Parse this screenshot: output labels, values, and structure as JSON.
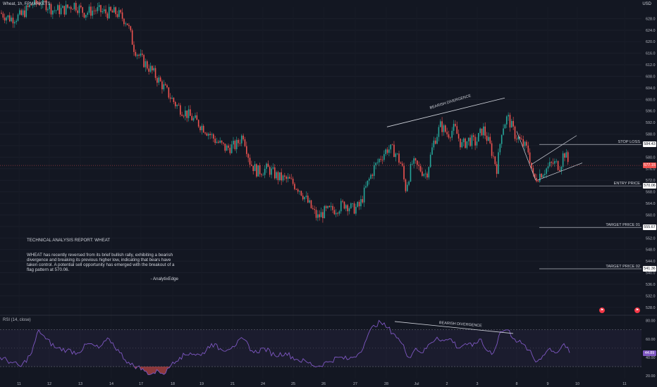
{
  "header": {
    "title": "Wheat, 1h, FPMARKETS",
    "currency": "USD"
  },
  "rsi_header": "RSI (14, close)",
  "report": {
    "title": "TECHNICAL ANALYSIS REPORT: WHEAT",
    "body": "WHEAT has recently reversed from its brief bullish rally, exhibiting a bearish divergence and breaking its previous higher low, indicating that bears have taken control. A potential sell opportunity has emerged with the breakout of a flag pattern at 570.06.",
    "signature": "- AnalytixEdge"
  },
  "levels": [
    {
      "label": "STOP LOSS",
      "value": "584.43",
      "price": 584.43
    },
    {
      "label": "ENTRY PRICE",
      "value": "570.06",
      "price": 570.06
    },
    {
      "label": "TARGET PRICE 01",
      "value": "555.67",
      "price": 555.67
    },
    {
      "label": "TARGET PRICE 02",
      "value": "541.36",
      "price": 541.36
    }
  ],
  "current_price": {
    "value": "577.15",
    "price": 577.15
  },
  "annotations": {
    "price_divergence": "BEARISH DIVERGENCE",
    "rsi_divergence": "BEARISH DIVERGENCE"
  },
  "colors": {
    "background": "#131722",
    "up": "#26a69a",
    "down": "#ef5350",
    "rsi": "#7e57c2",
    "level": "#b2b5be"
  },
  "chart_data": [
    {
      "type": "candlestick",
      "title": "Wheat, 1h, FPMARKETS",
      "ylim": [
        526,
        632
      ],
      "y_ticks": [
        528,
        532,
        536,
        540,
        544,
        548,
        552,
        556,
        560,
        564,
        568,
        572,
        576,
        580,
        584,
        588,
        592,
        596,
        600,
        604,
        608,
        612,
        616,
        620,
        624,
        628
      ],
      "x_ticks": [
        "11",
        "12",
        "13",
        "14",
        "17",
        "18",
        "19",
        "21",
        "24",
        "25",
        "26",
        "27",
        "28",
        "Jul",
        "2",
        "3",
        "8",
        "9",
        "10",
        "11"
      ],
      "path_close": [
        [
          0,
          630
        ],
        [
          15,
          628
        ],
        [
          30,
          629
        ],
        [
          45,
          633
        ],
        [
          60,
          634
        ],
        [
          75,
          631
        ],
        [
          90,
          631
        ],
        [
          105,
          633
        ],
        [
          120,
          630
        ],
        [
          135,
          631
        ],
        [
          150,
          630
        ],
        [
          165,
          630
        ],
        [
          180,
          627
        ],
        [
          190,
          618
        ],
        [
          200,
          614
        ],
        [
          215,
          610
        ],
        [
          230,
          605
        ],
        [
          250,
          598
        ],
        [
          270,
          594
        ],
        [
          290,
          590
        ],
        [
          305,
          586
        ],
        [
          320,
          583
        ],
        [
          335,
          584
        ],
        [
          345,
          588
        ],
        [
          355,
          578
        ],
        [
          365,
          575
        ],
        [
          380,
          576
        ],
        [
          395,
          573
        ],
        [
          410,
          572
        ],
        [
          425,
          569
        ],
        [
          440,
          563
        ],
        [
          450,
          559
        ],
        [
          460,
          561
        ],
        [
          475,
          562
        ],
        [
          490,
          564
        ],
        [
          500,
          562
        ],
        [
          510,
          563
        ],
        [
          520,
          570
        ],
        [
          530,
          576
        ],
        [
          540,
          580
        ],
        [
          550,
          583
        ],
        [
          560,
          582
        ],
        [
          570,
          577
        ],
        [
          575,
          569
        ],
        [
          585,
          578
        ],
        [
          595,
          576
        ],
        [
          605,
          574
        ],
        [
          615,
          585
        ],
        [
          625,
          591
        ],
        [
          635,
          588
        ],
        [
          645,
          590
        ],
        [
          655,
          584
        ],
        [
          665,
          586
        ],
        [
          675,
          585
        ],
        [
          685,
          590
        ],
        [
          695,
          584
        ],
        [
          705,
          576
        ],
        [
          712,
          590
        ],
        [
          720,
          594
        ],
        [
          730,
          588
        ],
        [
          740,
          585
        ],
        [
          750,
          582
        ],
        [
          757,
          572
        ],
        [
          765,
          574
        ],
        [
          775,
          576
        ],
        [
          785,
          578
        ],
        [
          795,
          577
        ],
        [
          800,
          582
        ],
        [
          808,
          577
        ]
      ],
      "bearish_divergence_line": [
        [
          549,
          590.5
        ],
        [
          716,
          600.5
        ]
      ],
      "flag_channel": {
        "upper": [
          [
            754,
            577.5
          ],
          [
            818,
            587.5
          ]
        ],
        "lower": [
          [
            762,
            572
          ],
          [
            826,
            578
          ]
        ]
      },
      "flag_pole": [
        [
          733,
          589
        ],
        [
          760,
          572
        ]
      ]
    },
    {
      "type": "line",
      "title": "RSI (14, close)",
      "ylim": [
        17,
        82
      ],
      "y_ticks": [
        20,
        40,
        60,
        80
      ],
      "bands": [
        30,
        70
      ],
      "last_value": "44.89",
      "x": [
        0,
        15,
        30,
        45,
        55,
        65,
        80,
        95,
        110,
        125,
        140,
        155,
        170,
        185,
        195,
        205,
        215,
        225,
        235,
        245,
        255,
        270,
        285,
        300,
        315,
        330,
        345,
        360,
        375,
        390,
        405,
        420,
        435,
        450,
        465,
        480,
        495,
        510,
        520,
        530,
        540,
        550,
        560,
        570,
        580,
        590,
        600,
        610,
        620,
        630,
        640,
        650,
        660,
        670,
        680,
        690,
        700,
        710,
        720,
        730,
        740,
        750,
        760,
        770,
        780,
        790,
        800,
        808
      ],
      "values": [
        40,
        35,
        30,
        45,
        70,
        60,
        50,
        48,
        45,
        55,
        50,
        60,
        45,
        32,
        30,
        25,
        22,
        25,
        23,
        35,
        40,
        45,
        42,
        55,
        48,
        52,
        60,
        45,
        50,
        42,
        45,
        38,
        35,
        30,
        35,
        40,
        38,
        45,
        60,
        75,
        78,
        72,
        65,
        55,
        40,
        50,
        45,
        55,
        62,
        58,
        60,
        50,
        55,
        52,
        60,
        48,
        45,
        68,
        70,
        60,
        55,
        48,
        35,
        42,
        50,
        45,
        55,
        45
      ],
      "bearish_divergence_line": [
        [
          560,
          79
        ],
        [
          728,
          66
        ]
      ]
    }
  ]
}
